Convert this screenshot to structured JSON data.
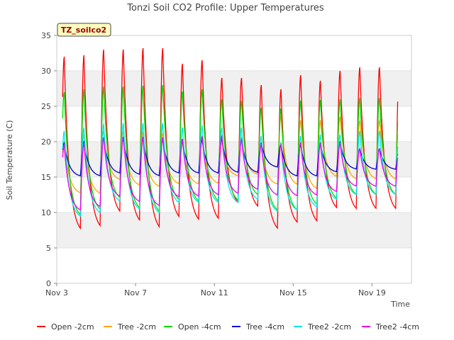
{
  "chart_data": {
    "type": "line",
    "title": "Tonzi Soil CO2 Profile: Upper Temperatures",
    "xlabel": "Time",
    "ylabel": "Soil Temperature (C)",
    "site_label": "TZ_soilco2",
    "xlim": [
      3.0,
      21.0
    ],
    "ylim": [
      0,
      35
    ],
    "x_ticks": [
      3,
      7,
      11,
      15,
      19
    ],
    "x_tick_labels": [
      "Nov 3",
      "Nov 7",
      "Nov 11",
      "Nov 15",
      "Nov 19"
    ],
    "y_ticks": [
      0,
      5,
      10,
      15,
      20,
      25,
      30,
      35
    ],
    "y_tick_labels": [
      "0",
      "5",
      "10",
      "15",
      "20",
      "25",
      "30",
      "35"
    ],
    "grid": "horizontal bands",
    "legend_position": "bottom",
    "series": [
      {
        "name": "Open -2cm",
        "color": "#ff0000",
        "min": [
          7.8,
          6.8,
          7.2,
          9.3,
          8.0,
          7.0,
          8.5,
          8.2,
          8.3,
          10.8,
          10.2,
          7.0,
          7.9,
          8.0,
          10.0,
          9.8
        ],
        "max": [
          32.0,
          32.2,
          33.0,
          33.0,
          33.2,
          33.2,
          31.0,
          31.5,
          29.0,
          29.0,
          28.0,
          27.4,
          29.4,
          28.6,
          30.0,
          30.5
        ]
      },
      {
        "name": "Tree -2cm",
        "color": "#ffa500",
        "min": [
          13.6,
          12.5,
          12.4,
          14.4,
          13.6,
          13.4,
          13.8,
          13.8,
          13.9,
          15.0,
          15.2,
          13.8,
          13.6,
          13.0,
          14.8,
          14.4
        ],
        "max": [
          20.0,
          21.0,
          21.5,
          21.4,
          21.3,
          21.2,
          20.0,
          20.5,
          20.0,
          20.6,
          19.6,
          23.6,
          23.0,
          23.0,
          23.5,
          23.0
        ]
      },
      {
        "name": "Open -4cm",
        "color": "#00dd00",
        "min": [
          11.2,
          9.0,
          9.8,
          11.5,
          10.0,
          9.5,
          11.2,
          11.0,
          11.0,
          11.2,
          12.0,
          9.8,
          9.8,
          10.6,
          11.5,
          12.0
        ],
        "max": [
          27.0,
          27.4,
          27.8,
          27.8,
          27.9,
          28.0,
          27.1,
          27.4,
          26.0,
          25.8,
          24.8,
          24.7,
          25.8,
          25.9,
          26.0,
          26.2
        ]
      },
      {
        "name": "Tree -4cm",
        "color": "#0000cc",
        "min": [
          15.8,
          15.0,
          15.0,
          15.4,
          15.2,
          15.0,
          15.4,
          15.4,
          15.4,
          15.5,
          15.5,
          16.3,
          15.0,
          15.0,
          15.6,
          16.0
        ],
        "max": [
          19.8,
          20.0,
          20.4,
          20.6,
          20.6,
          20.3,
          20.1,
          20.2,
          20.4,
          20.2,
          19.8,
          19.6,
          19.6,
          19.8,
          20.0,
          19.0
        ]
      },
      {
        "name": "Tree2 -2cm",
        "color": "#00e5ee",
        "min": [
          10.8,
          9.0,
          9.5,
          11.2,
          10.0,
          9.5,
          11.0,
          11.0,
          11.0,
          11.0,
          11.5,
          9.8,
          10.0,
          10.4,
          11.5,
          12.2
        ],
        "max": [
          21.5,
          22.0,
          22.5,
          22.6,
          22.6,
          22.6,
          22.0,
          22.3,
          22.0,
          22.0,
          20.8,
          19.9,
          20.8,
          21.0,
          21.0,
          21.5
        ]
      },
      {
        "name": "Tree2 -4cm",
        "color": "#ee00ee",
        "min": [
          12.2,
          10.0,
          10.5,
          12.0,
          11.2,
          10.6,
          11.9,
          12.0,
          12.2,
          12.4,
          13.0,
          12.2,
          12.1,
          12.2,
          12.7,
          13.5
        ],
        "max": [
          19.5,
          19.8,
          20.6,
          20.6,
          20.6,
          20.6,
          20.4,
          20.7,
          20.8,
          20.3,
          19.6,
          19.6,
          19.8,
          19.7,
          19.8,
          19.0
        ]
      }
    ]
  }
}
